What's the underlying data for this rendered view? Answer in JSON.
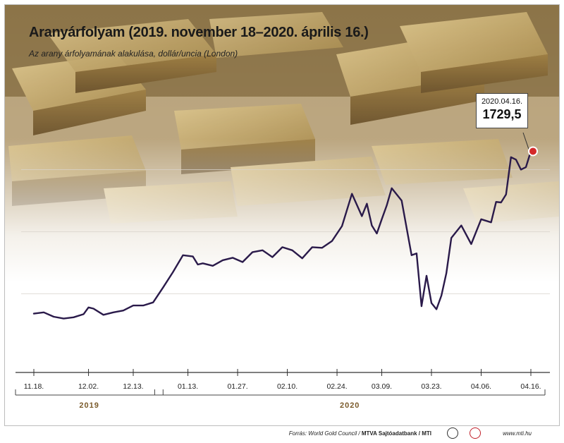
{
  "title": "Aranyárfolyam (2019. november 18–2020. április 16.)",
  "subtitle": "Az arany árfolyamának alakulása, dollár/uncia (London)",
  "callout": {
    "date": "2020.04.16.",
    "value": "1729,5"
  },
  "footer": {
    "source_prefix": "Forrás: World Gold Council / ",
    "source_bold": "MTVA Sajtóadatbank / MTI",
    "site": "www.mti.hu"
  },
  "chart_data": {
    "type": "line",
    "title": "Aranyárfolyam (2019. november 18–2020. április 16.)",
    "subtitle": "Az arany árfolyamának alakulása, dollár/uncia (London)",
    "xlabel": "",
    "ylabel": "",
    "unit": "dollár/uncia",
    "x_range": [
      0,
      106
    ],
    "ylim": [
      1430,
      1780
    ],
    "grid": true,
    "x_ticks": [
      {
        "i": 0,
        "label": "11.18."
      },
      {
        "i": 11,
        "label": "12.02."
      },
      {
        "i": 20,
        "label": "12.13."
      },
      {
        "i": 31,
        "label": "01.13."
      },
      {
        "i": 41,
        "label": "01.27."
      },
      {
        "i": 51,
        "label": "02.10."
      },
      {
        "i": 61,
        "label": "02.24."
      },
      {
        "i": 70,
        "label": "03.09."
      },
      {
        "i": 80,
        "label": "03.23."
      },
      {
        "i": 90,
        "label": "04.06."
      },
      {
        "i": 100,
        "label": "04.16."
      }
    ],
    "periods": [
      {
        "label": "2019",
        "start": 0,
        "end": 26
      },
      {
        "label": "2020",
        "end": 100,
        "start": 28
      }
    ],
    "series": [
      {
        "x": [
          0,
          2,
          4,
          6,
          8,
          10,
          11,
          12,
          14,
          16,
          18,
          20,
          22,
          24,
          26,
          28,
          30,
          32,
          33,
          34,
          36,
          38,
          40,
          42,
          44,
          46,
          48,
          50,
          52,
          54,
          56,
          58,
          60,
          62,
          64,
          66,
          67,
          68,
          69,
          70,
          71,
          72,
          74,
          76,
          77,
          78,
          79,
          80,
          81,
          82,
          83,
          84,
          86,
          88,
          90,
          92,
          93,
          94,
          95,
          96,
          97,
          98,
          99,
          100
        ],
        "values": [
          1468,
          1470,
          1463,
          1460,
          1462,
          1467,
          1478,
          1476,
          1466,
          1470,
          1473,
          1481,
          1481,
          1486,
          1510,
          1535,
          1562,
          1560,
          1547,
          1549,
          1545,
          1554,
          1558,
          1551,
          1567,
          1570,
          1559,
          1575,
          1570,
          1557,
          1575,
          1574,
          1585,
          1609,
          1661,
          1625,
          1645,
          1610,
          1597,
          1620,
          1642,
          1670,
          1650,
          1562,
          1565,
          1480,
          1529,
          1485,
          1475,
          1497,
          1533,
          1590,
          1610,
          1580,
          1620,
          1615,
          1648,
          1647,
          1660,
          1720,
          1716,
          1700,
          1704,
          1729.5
        ]
      }
    ],
    "annotation": {
      "date": "2020.04.16.",
      "value": 1729.5
    }
  }
}
